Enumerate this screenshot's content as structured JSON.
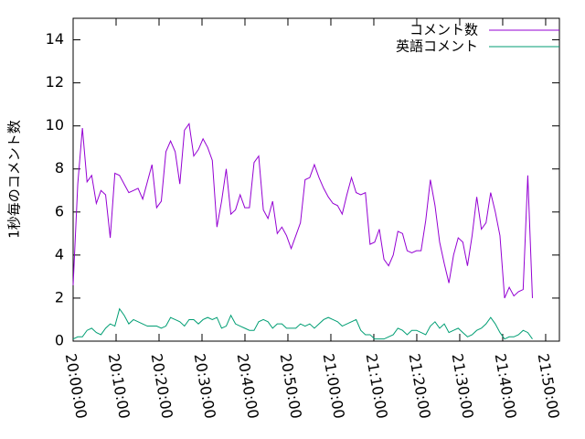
{
  "chart_data": {
    "type": "line",
    "y_label": "1秒毎のコメント数",
    "x": [
      0,
      1.08,
      2.16,
      3.24,
      4.32,
      5.4,
      6.48,
      7.56,
      8.64,
      9.72,
      10.8,
      11.88,
      12.96,
      14.04,
      15.12,
      16.2,
      17.28,
      18.36,
      19.44,
      20.52,
      21.6,
      22.68,
      23.76,
      24.84,
      25.92,
      27,
      28.08,
      29.16,
      30.24,
      31.32,
      32.4,
      33.48,
      34.56,
      35.64,
      36.72,
      37.8,
      38.88,
      39.96,
      41.04,
      42.12,
      43.2,
      44.28,
      45.36,
      46.44,
      47.52,
      48.6,
      49.68,
      50.76,
      51.84,
      52.92,
      54,
      55.08,
      56.16,
      57.24,
      58.32,
      59.4,
      60.48,
      61.56,
      62.64,
      63.72,
      64.8,
      65.88,
      66.96,
      68.04,
      69.12,
      70.2,
      71.28,
      72.36,
      73.44,
      74.52,
      75.6,
      76.68,
      77.76,
      78.84,
      79.92,
      81,
      82.08,
      83.16,
      84.24,
      85.32,
      86.4,
      87.48,
      88.56,
      89.64,
      90.72,
      91.8,
      92.88,
      93.96,
      95.04,
      96.12,
      97.2,
      98.28,
      99.36,
      100.44,
      101.52,
      102.6,
      103.68,
      104.76,
      105.84,
      106.92
    ],
    "series": [
      {
        "name": "コメント数",
        "color": "#9400d3",
        "values": [
          2.6,
          7.3,
          9.9,
          7.4,
          7.7,
          6.4,
          7.0,
          6.8,
          4.8,
          7.8,
          7.7,
          7.3,
          6.9,
          7.0,
          7.1,
          6.6,
          7.4,
          8.2,
          6.2,
          6.5,
          8.8,
          9.3,
          8.8,
          7.3,
          9.8,
          10.1,
          8.6,
          8.9,
          9.4,
          9.0,
          8.4,
          5.3,
          6.5,
          8.0,
          5.9,
          6.1,
          6.8,
          6.2,
          6.2,
          8.3,
          8.6,
          6.1,
          5.7,
          6.5,
          5.0,
          5.3,
          4.9,
          4.3,
          4.9,
          5.5,
          7.5,
          7.6,
          8.2,
          7.6,
          7.1,
          6.7,
          6.4,
          6.3,
          5.9,
          6.8,
          7.6,
          6.9,
          6.8,
          6.9,
          4.5,
          4.6,
          5.2,
          3.8,
          3.5,
          4.0,
          5.1,
          5.0,
          4.2,
          4.1,
          4.2,
          4.2,
          5.6,
          7.5,
          6.3,
          4.6,
          3.6,
          2.7,
          4.0,
          4.8,
          4.6,
          3.5,
          4.9,
          6.7,
          5.2,
          5.5,
          6.9,
          6.0,
          4.9,
          2.0,
          2.5,
          2.1,
          2.3,
          2.4,
          7.7,
          2.0
        ]
      },
      {
        "name": "英語コメント",
        "color": "#009e73",
        "values": [
          0.1,
          0.2,
          0.2,
          0.5,
          0.6,
          0.4,
          0.3,
          0.6,
          0.8,
          0.7,
          1.5,
          1.2,
          0.8,
          1.0,
          0.9,
          0.8,
          0.7,
          0.7,
          0.7,
          0.6,
          0.7,
          1.1,
          1.0,
          0.9,
          0.7,
          1.0,
          1.0,
          0.8,
          1.0,
          1.1,
          1.0,
          1.1,
          0.6,
          0.7,
          1.2,
          0.8,
          0.7,
          0.6,
          0.5,
          0.5,
          0.9,
          1.0,
          0.9,
          0.6,
          0.8,
          0.8,
          0.6,
          0.6,
          0.6,
          0.8,
          0.7,
          0.8,
          0.6,
          0.8,
          1.0,
          1.1,
          1.0,
          0.9,
          0.7,
          0.8,
          0.9,
          1.0,
          0.5,
          0.3,
          0.3,
          0.1,
          0.1,
          0.1,
          0.2,
          0.3,
          0.6,
          0.5,
          0.3,
          0.5,
          0.5,
          0.4,
          0.3,
          0.7,
          0.9,
          0.6,
          0.8,
          0.4,
          0.5,
          0.6,
          0.4,
          0.2,
          0.3,
          0.5,
          0.6,
          0.8,
          1.1,
          0.8,
          0.4,
          0.1,
          0.2,
          0.2,
          0.3,
          0.5,
          0.4,
          0.1
        ]
      }
    ],
    "xlim": [
      0,
      113.2
    ],
    "xticks": [
      {
        "value": 0,
        "label": "20:00:00"
      },
      {
        "value": 10,
        "label": "20:10:00"
      },
      {
        "value": 20,
        "label": "20:20:00"
      },
      {
        "value": 30,
        "label": "20:30:00"
      },
      {
        "value": 40,
        "label": "20:40:00"
      },
      {
        "value": 50,
        "label": "20:50:00"
      },
      {
        "value": 60,
        "label": "21:00:00"
      },
      {
        "value": 70,
        "label": "21:10:00"
      },
      {
        "value": 80,
        "label": "21:20:00"
      },
      {
        "value": 90,
        "label": "21:30:00"
      },
      {
        "value": 100,
        "label": "21:40:00"
      },
      {
        "value": 110,
        "label": "21:50:00"
      }
    ],
    "ylim": [
      0,
      15
    ],
    "yticks": [
      0,
      2,
      4,
      6,
      8,
      10,
      12,
      14
    ],
    "legend": "top-right"
  }
}
